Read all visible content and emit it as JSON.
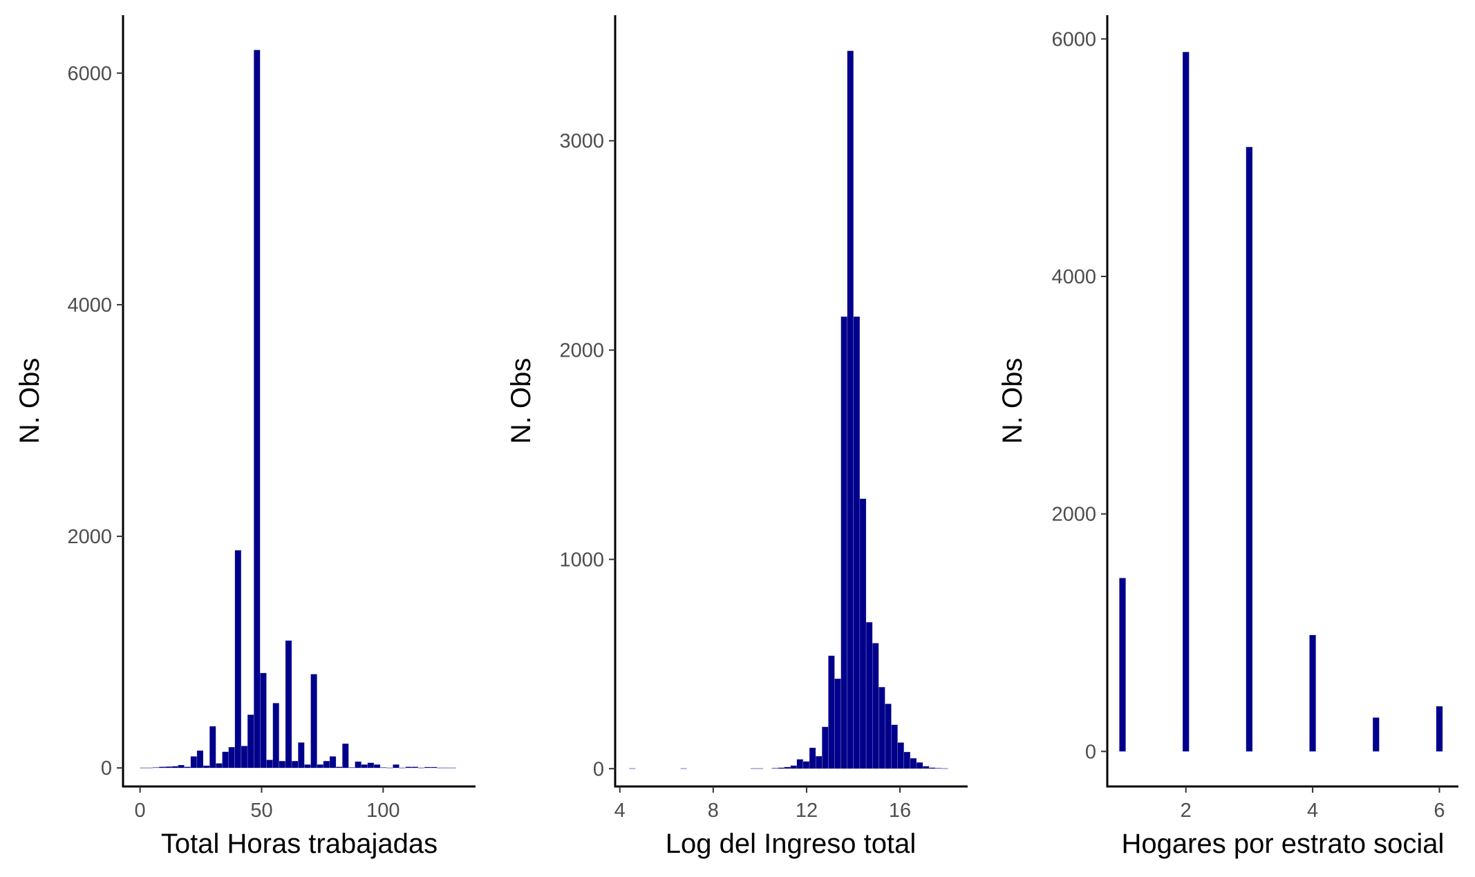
{
  "figure": {
    "bar_color": "#00008B",
    "axis_color": "#000000",
    "tick_label_color": "#4d4d4d",
    "background": "#ffffff"
  },
  "chart_data": [
    {
      "type": "bar",
      "subtype": "histogram",
      "xlabel": "Total Horas trabajadas",
      "ylabel": "N. Obs",
      "xlim": [
        -7,
        138
      ],
      "ylim": [
        -160,
        6500
      ],
      "xticks": [
        0,
        50,
        100
      ],
      "yticks": [
        0,
        2000,
        4000,
        6000
      ],
      "bin_width": 2.6,
      "bins": [
        {
          "x": 0,
          "y": 3
        },
        {
          "x": 2.6,
          "y": 3
        },
        {
          "x": 5.2,
          "y": 5
        },
        {
          "x": 7.8,
          "y": 10
        },
        {
          "x": 10.4,
          "y": 12
        },
        {
          "x": 13,
          "y": 15
        },
        {
          "x": 15.6,
          "y": 25
        },
        {
          "x": 18.2,
          "y": 10
        },
        {
          "x": 20.8,
          "y": 100
        },
        {
          "x": 23.4,
          "y": 150
        },
        {
          "x": 26,
          "y": 20
        },
        {
          "x": 28.6,
          "y": 360
        },
        {
          "x": 31.2,
          "y": 40
        },
        {
          "x": 33.8,
          "y": 140
        },
        {
          "x": 36.4,
          "y": 180
        },
        {
          "x": 39,
          "y": 1880
        },
        {
          "x": 41.6,
          "y": 190
        },
        {
          "x": 44.2,
          "y": 460
        },
        {
          "x": 46.8,
          "y": 6200
        },
        {
          "x": 49.4,
          "y": 820
        },
        {
          "x": 52,
          "y": 70
        },
        {
          "x": 54.6,
          "y": 560
        },
        {
          "x": 57.2,
          "y": 60
        },
        {
          "x": 59.8,
          "y": 1100
        },
        {
          "x": 62.4,
          "y": 60
        },
        {
          "x": 65,
          "y": 220
        },
        {
          "x": 67.6,
          "y": 30
        },
        {
          "x": 70.2,
          "y": 810
        },
        {
          "x": 72.8,
          "y": 30
        },
        {
          "x": 75.4,
          "y": 60
        },
        {
          "x": 78,
          "y": 100
        },
        {
          "x": 80.6,
          "y": 10
        },
        {
          "x": 83.2,
          "y": 210
        },
        {
          "x": 85.8,
          "y": 5
        },
        {
          "x": 88.4,
          "y": 55
        },
        {
          "x": 91,
          "y": 30
        },
        {
          "x": 93.6,
          "y": 45
        },
        {
          "x": 96.2,
          "y": 30
        },
        {
          "x": 98.8,
          "y": 5
        },
        {
          "x": 101.4,
          "y": 3
        },
        {
          "x": 104,
          "y": 30
        },
        {
          "x": 106.6,
          "y": 3
        },
        {
          "x": 109.2,
          "y": 10
        },
        {
          "x": 111.8,
          "y": 10
        },
        {
          "x": 114.4,
          "y": 3
        },
        {
          "x": 117,
          "y": 8
        },
        {
          "x": 119.6,
          "y": 8
        },
        {
          "x": 122.2,
          "y": 3
        },
        {
          "x": 124.8,
          "y": 3
        },
        {
          "x": 127.4,
          "y": 3
        }
      ]
    },
    {
      "type": "bar",
      "subtype": "histogram",
      "xlabel": "Log del Ingreso total",
      "ylabel": "N. Obs",
      "xlim": [
        3.8,
        18.9
      ],
      "ylim": [
        -85,
        3600
      ],
      "xticks": [
        4,
        8,
        12,
        16
      ],
      "yticks": [
        0,
        1000,
        2000,
        3000
      ],
      "bin_width": 0.27,
      "bins": [
        {
          "x": 4.4,
          "y": 2
        },
        {
          "x": 6.6,
          "y": 2
        },
        {
          "x": 9.6,
          "y": 2
        },
        {
          "x": 9.87,
          "y": 2
        },
        {
          "x": 10.5,
          "y": 3
        },
        {
          "x": 10.77,
          "y": 5
        },
        {
          "x": 11.04,
          "y": 8
        },
        {
          "x": 11.31,
          "y": 15
        },
        {
          "x": 11.58,
          "y": 45
        },
        {
          "x": 11.85,
          "y": 35
        },
        {
          "x": 12.12,
          "y": 100
        },
        {
          "x": 12.39,
          "y": 60
        },
        {
          "x": 12.66,
          "y": 200
        },
        {
          "x": 12.93,
          "y": 540
        },
        {
          "x": 13.2,
          "y": 430
        },
        {
          "x": 13.47,
          "y": 2160
        },
        {
          "x": 13.74,
          "y": 3430
        },
        {
          "x": 14.01,
          "y": 2160
        },
        {
          "x": 14.28,
          "y": 1290
        },
        {
          "x": 14.55,
          "y": 700
        },
        {
          "x": 14.82,
          "y": 600
        },
        {
          "x": 15.09,
          "y": 390
        },
        {
          "x": 15.36,
          "y": 310
        },
        {
          "x": 15.63,
          "y": 210
        },
        {
          "x": 15.9,
          "y": 125
        },
        {
          "x": 16.17,
          "y": 80
        },
        {
          "x": 16.44,
          "y": 50
        },
        {
          "x": 16.71,
          "y": 30
        },
        {
          "x": 16.98,
          "y": 12
        },
        {
          "x": 17.25,
          "y": 5
        },
        {
          "x": 17.52,
          "y": 3
        },
        {
          "x": 17.79,
          "y": 2
        }
      ]
    },
    {
      "type": "bar",
      "xlabel": "Hogares por estrato social",
      "ylabel": "N. Obs",
      "xlim": [
        0.76,
        6.3
      ],
      "ylim": [
        -295,
        6200
      ],
      "xticks": [
        2,
        4,
        6
      ],
      "yticks": [
        0,
        2000,
        4000,
        6000
      ],
      "bar_width": 0.1,
      "categories": [
        1,
        2,
        3,
        4,
        5,
        6
      ],
      "values": [
        1460,
        5890,
        5090,
        980,
        285,
        380
      ]
    }
  ]
}
